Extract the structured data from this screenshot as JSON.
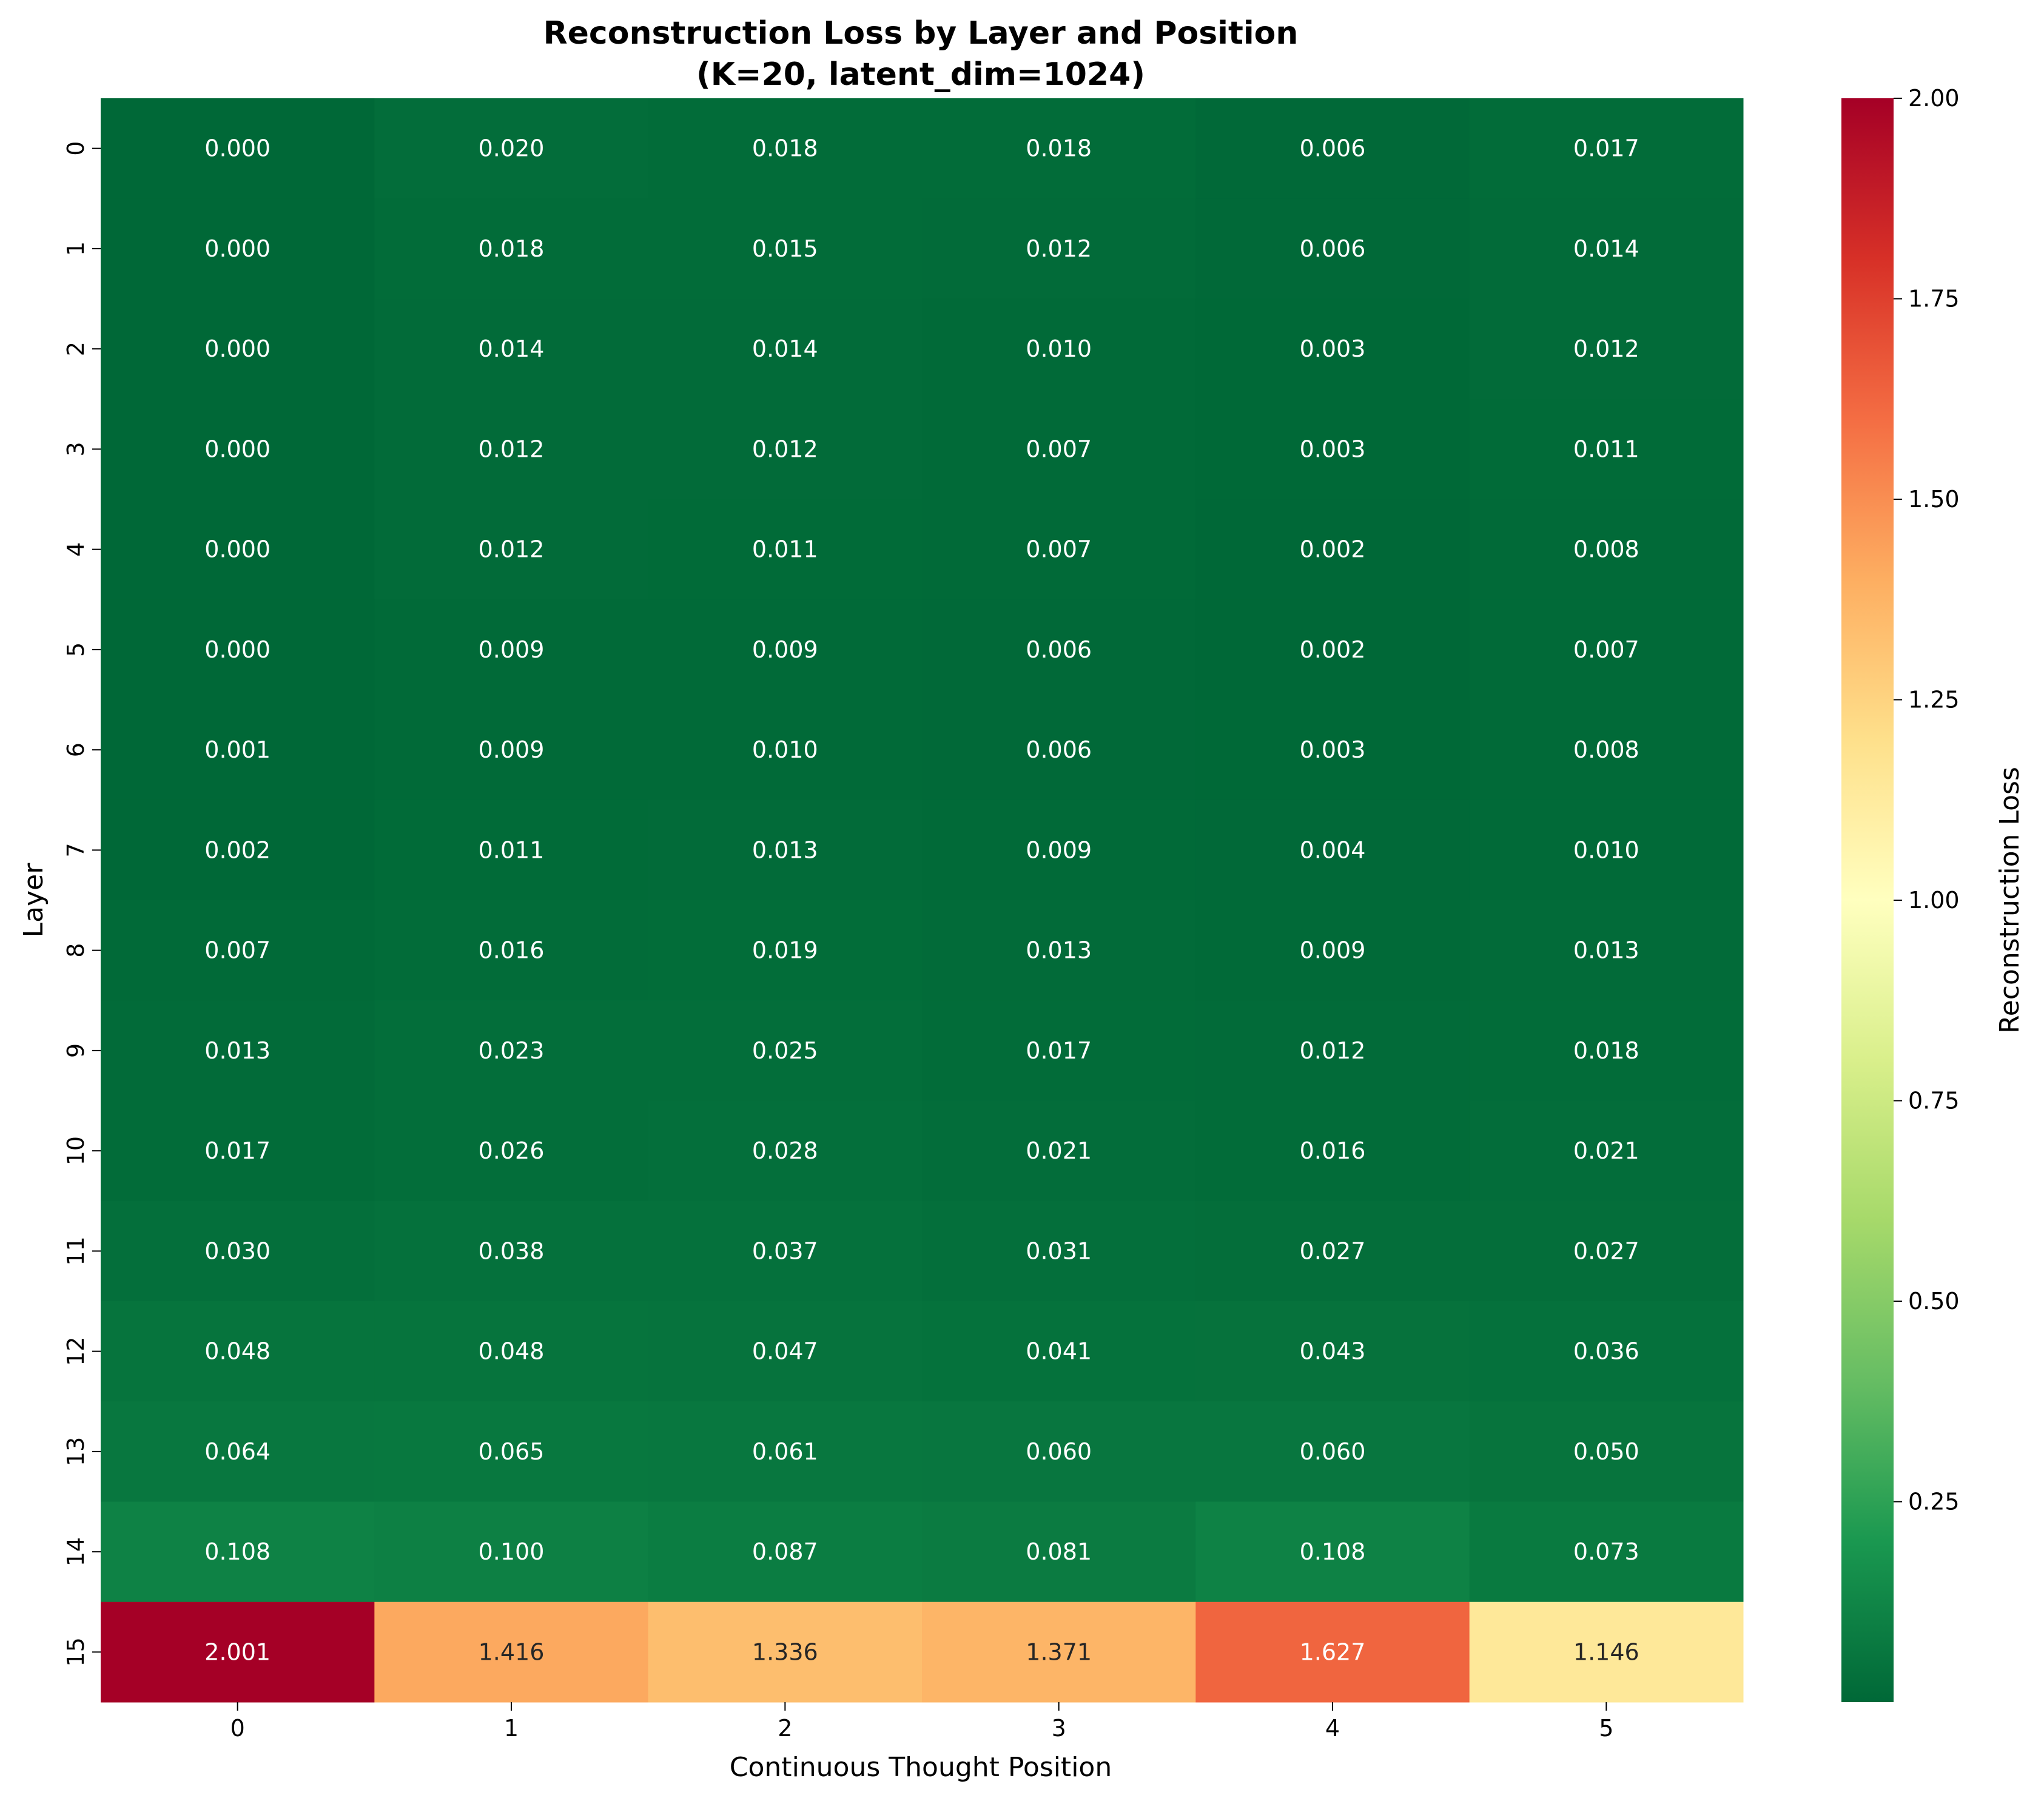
{
  "chart_data": {
    "type": "heatmap",
    "title": "Reconstruction Loss by Layer and Position",
    "subtitle": "(K=20, latent_dim=1024)",
    "xlabel": "Continuous Thought Position",
    "ylabel": "Layer",
    "x_categories": [
      "0",
      "1",
      "2",
      "3",
      "4",
      "5"
    ],
    "y_categories": [
      "0",
      "1",
      "2",
      "3",
      "4",
      "5",
      "6",
      "7",
      "8",
      "9",
      "10",
      "11",
      "12",
      "13",
      "14",
      "15"
    ],
    "values": [
      [
        0.0,
        0.02,
        0.018,
        0.018,
        0.006,
        0.017
      ],
      [
        0.0,
        0.018,
        0.015,
        0.012,
        0.006,
        0.014
      ],
      [
        0.0,
        0.014,
        0.014,
        0.01,
        0.003,
        0.012
      ],
      [
        0.0,
        0.012,
        0.012,
        0.007,
        0.003,
        0.011
      ],
      [
        0.0,
        0.012,
        0.011,
        0.007,
        0.002,
        0.008
      ],
      [
        0.0,
        0.009,
        0.009,
        0.006,
        0.002,
        0.007
      ],
      [
        0.001,
        0.009,
        0.01,
        0.006,
        0.003,
        0.008
      ],
      [
        0.002,
        0.011,
        0.013,
        0.009,
        0.004,
        0.01
      ],
      [
        0.007,
        0.016,
        0.019,
        0.013,
        0.009,
        0.013
      ],
      [
        0.013,
        0.023,
        0.025,
        0.017,
        0.012,
        0.018
      ],
      [
        0.017,
        0.026,
        0.028,
        0.021,
        0.016,
        0.021
      ],
      [
        0.03,
        0.038,
        0.037,
        0.031,
        0.027,
        0.027
      ],
      [
        0.048,
        0.048,
        0.047,
        0.041,
        0.043,
        0.036
      ],
      [
        0.064,
        0.065,
        0.061,
        0.06,
        0.06,
        0.05
      ],
      [
        0.108,
        0.1,
        0.087,
        0.081,
        0.108,
        0.073
      ],
      [
        2.001,
        1.416,
        1.336,
        1.371,
        1.627,
        1.146
      ]
    ],
    "value_format_decimals": 3,
    "colorscale": "RdYlGn_r",
    "colorbar": {
      "label": "Reconstruction Loss",
      "range": [
        0.0,
        2.0
      ],
      "ticks": [
        "0.25",
        "0.50",
        "0.75",
        "1.00",
        "1.25",
        "1.50",
        "1.75",
        "2.00"
      ]
    }
  }
}
